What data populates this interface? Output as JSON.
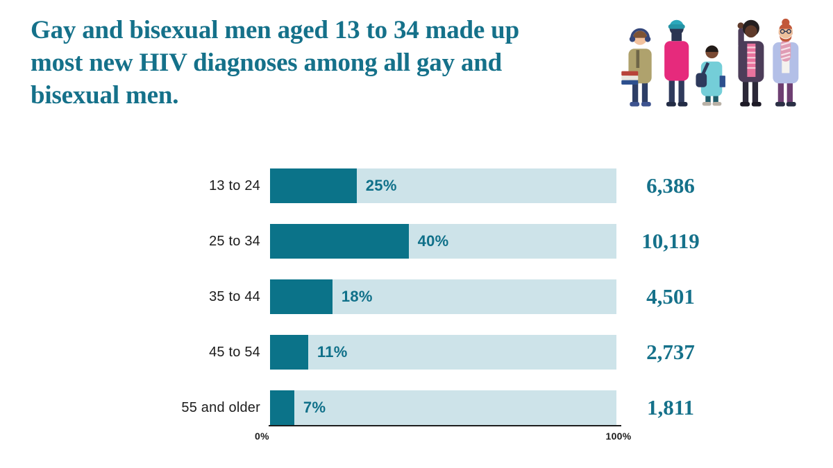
{
  "title": {
    "lines": [
      "Gay and bisexual men aged 13 to 34 made up",
      "most new HIV diagnoses among all gay and",
      "bisexual men."
    ],
    "color": "#15718a"
  },
  "illustration": {
    "description": "five-young-people-illustration"
  },
  "chart_data": {
    "type": "bar",
    "orientation": "horizontal",
    "title": "Gay and bisexual men aged 13 to 34 made up most new HIV diagnoses among all gay and bisexual men.",
    "categories": [
      "13 to 24",
      "25 to 34",
      "35 to 44",
      "45 to 54",
      "55 and older"
    ],
    "values_percent": [
      25,
      40,
      18,
      11,
      7
    ],
    "percent_labels": [
      "25%",
      "40%",
      "18%",
      "11%",
      "7%"
    ],
    "counts": [
      "6,386",
      "10,119",
      "4,501",
      "2,737",
      "1,811"
    ],
    "xlim": [
      0,
      100
    ],
    "x_ticks": [
      "0%",
      "100%"
    ],
    "grid": false,
    "legend": false,
    "colors": {
      "bar_fill": "#0b7389",
      "bar_track": "#cde3e9",
      "percent_label": "#0f7089",
      "count_label": "#15718a",
      "axis_text": "#1c1c1c"
    }
  }
}
